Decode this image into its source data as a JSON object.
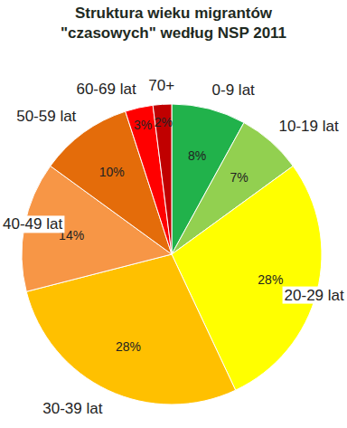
{
  "chart_data": {
    "type": "pie",
    "title": "Struktura wieku migrantów \"czasowych\" według NSP 2011",
    "categories": [
      "0-9 lat",
      "10-19 lat",
      "20-29 lat",
      "30-39 lat",
      "40-49 lat",
      "50-59 lat",
      "60-69 lat",
      "70+"
    ],
    "values": [
      8,
      7,
      28,
      28,
      14,
      10,
      3,
      2
    ],
    "value_labels": [
      "8%",
      "7%",
      "28%",
      "28%",
      "14%",
      "10%",
      "3%",
      "2%"
    ],
    "colors": [
      "#21b24b",
      "#92d050",
      "#ffff00",
      "#ffc000",
      "#f79646",
      "#e46c0a",
      "#ff0000",
      "#c00000"
    ],
    "data_labels": true
  }
}
